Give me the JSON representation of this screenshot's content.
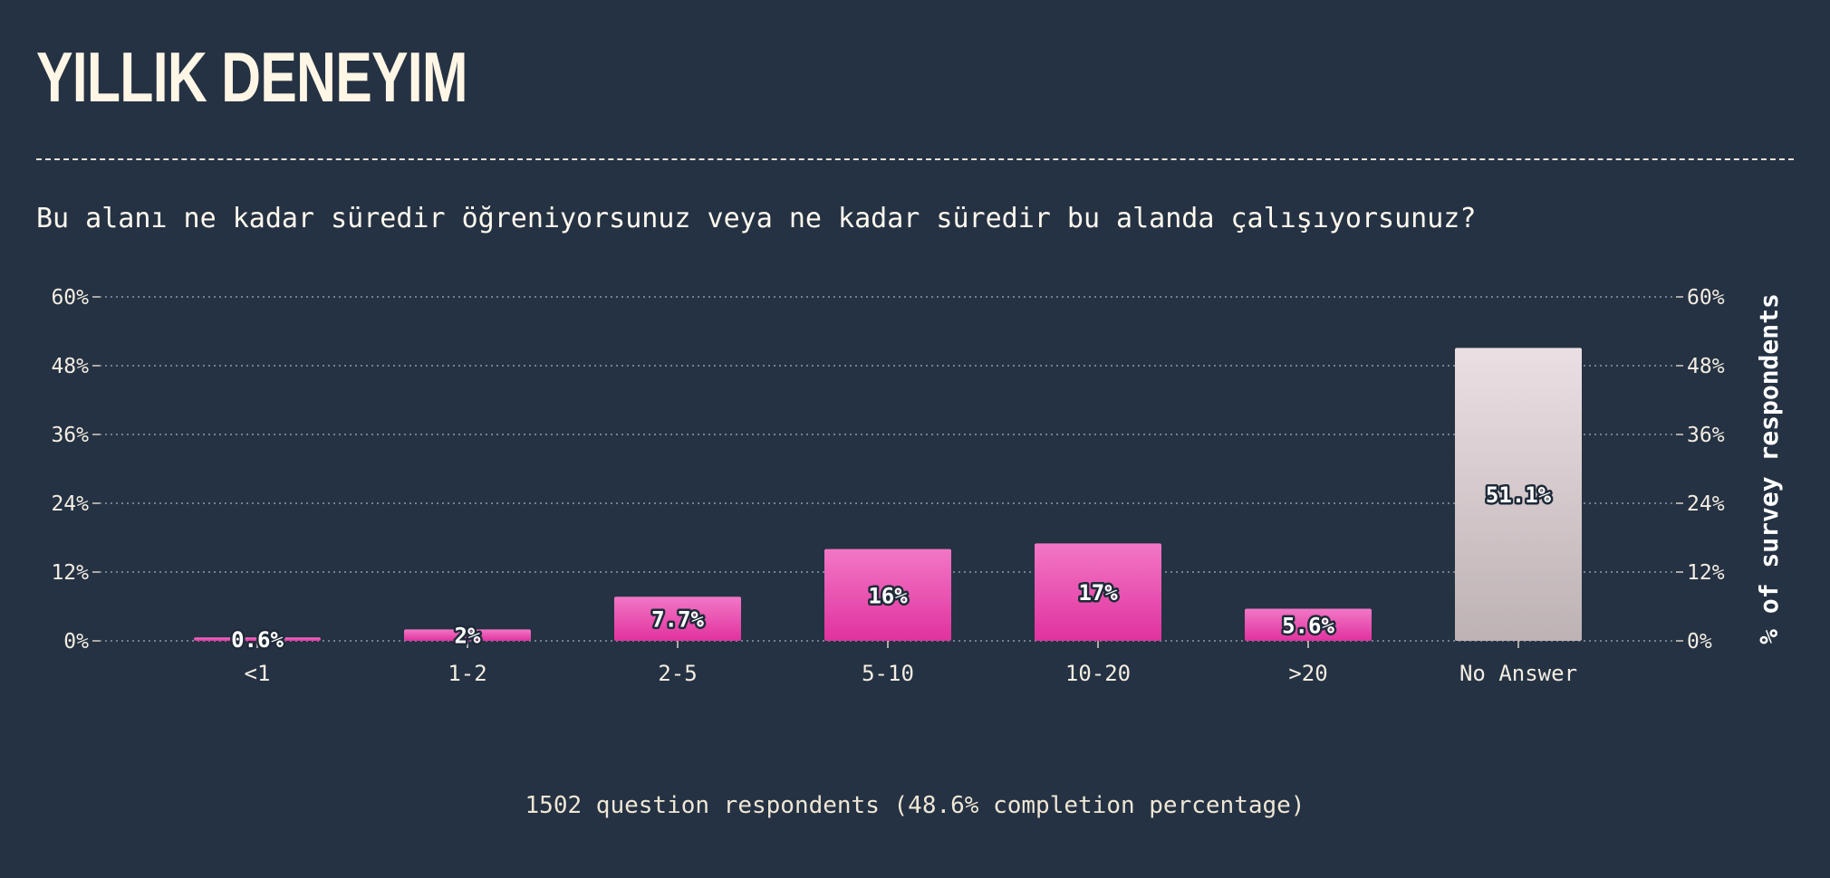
{
  "page": {
    "title": "YILLIK DENEYIM",
    "question": "Bu alanı ne kadar süredir öğreniyorsunuz veya ne kadar süredir bu alanda çalışıyorsunuz?",
    "footer": "1502 question respondents (48.6% completion percentage)"
  },
  "colors": {
    "background": "#253243",
    "bar_gradient_top": "#f277c6",
    "bar_gradient_bottom": "#e0329e",
    "no_answer_top": "#ebdfe3",
    "no_answer_bottom": "#bdb2b4",
    "text": "#fff9ee"
  },
  "chart_data": {
    "type": "bar",
    "categories": [
      "<1",
      "1-2",
      "2-5",
      "5-10",
      "10-20",
      ">20",
      "No Answer"
    ],
    "values": [
      0.6,
      2,
      7.7,
      16,
      17,
      5.6,
      51.1
    ],
    "value_labels": [
      "0.6%",
      "2%",
      "7.7%",
      "16%",
      "17%",
      "5.6%",
      "51.1%"
    ],
    "ylim": [
      0,
      60
    ],
    "yticks": [
      0,
      12,
      24,
      36,
      48,
      60
    ],
    "ytick_labels": [
      "0%",
      "12%",
      "24%",
      "36%",
      "48%",
      "60%"
    ],
    "ylabel": "% of survey respondents",
    "xlabel": "",
    "grid": true,
    "secondary_y_axis": true,
    "highlight_category": "No Answer"
  }
}
